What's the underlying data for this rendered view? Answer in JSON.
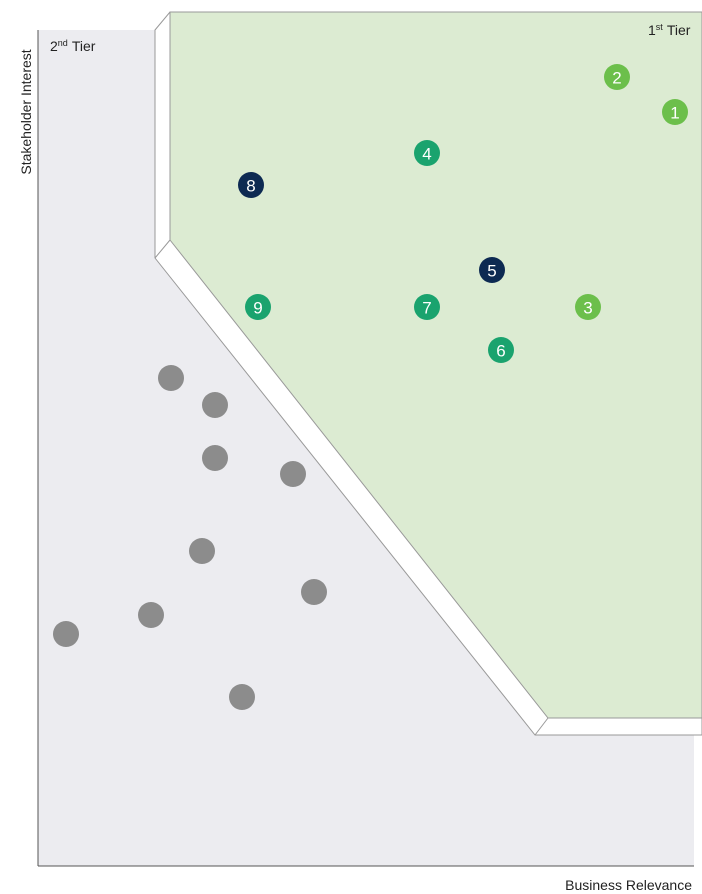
{
  "axes": {
    "y_label": "Stakeholder Interest",
    "x_label": "Business Relevance"
  },
  "tier_2": {
    "number": "2",
    "ordinal": "nd",
    "word": "Tier"
  },
  "tier_1": {
    "number": "1",
    "ordinal": "st",
    "word": "Tier"
  },
  "topics": [
    {
      "label": "1",
      "color": "#6cbf4b"
    },
    {
      "label": "2",
      "color": "#6cbf4b"
    },
    {
      "label": "3",
      "color": "#6cbf4b"
    },
    {
      "label": "4",
      "color": "#1aa36e"
    },
    {
      "label": "5",
      "color": "#0d2a52"
    },
    {
      "label": "6",
      "color": "#1aa36e"
    },
    {
      "label": "7",
      "color": "#1aa36e"
    },
    {
      "label": "8",
      "color": "#0d2a52"
    },
    {
      "label": "9",
      "color": "#1aa36e"
    }
  ]
}
